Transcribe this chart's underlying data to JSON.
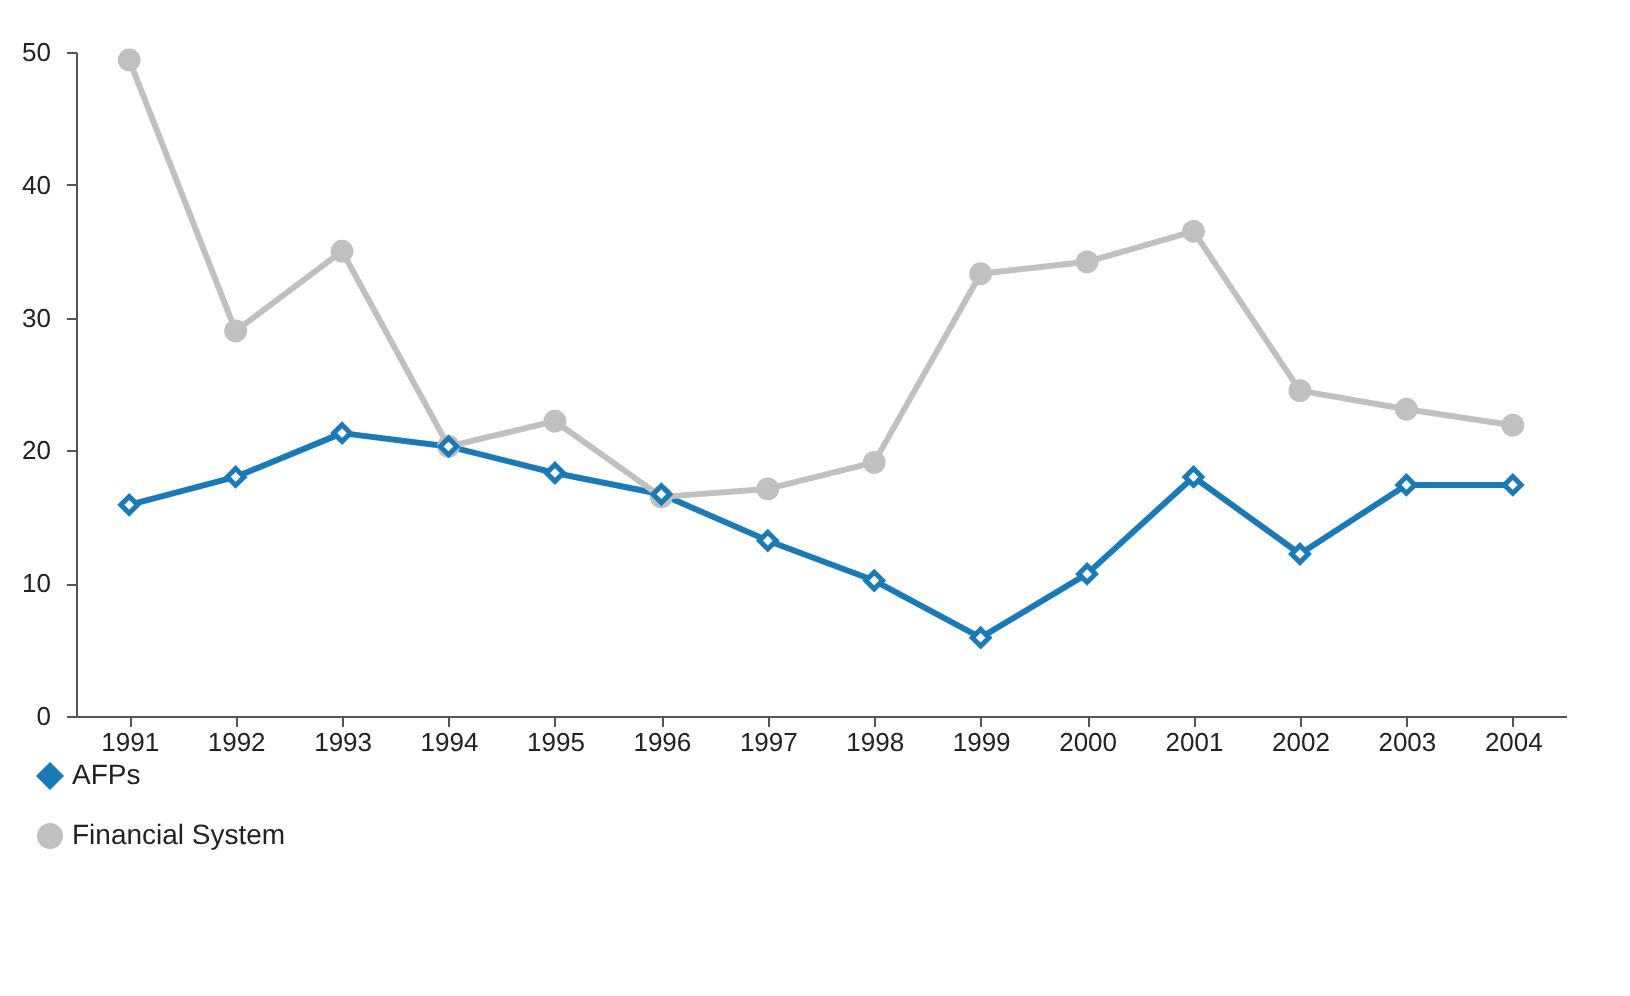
{
  "chart_data": {
    "type": "line",
    "categories": [
      "1991",
      "1992",
      "1993",
      "1994",
      "1995",
      "1996",
      "1997",
      "1998",
      "1999",
      "2000",
      "2001",
      "2002",
      "2003",
      "2004"
    ],
    "series": [
      {
        "name": "AFPs",
        "color": "#1a7ab8",
        "marker": "diamond",
        "values": [
          15.9,
          18.0,
          21.3,
          20.3,
          18.3,
          16.7,
          13.2,
          10.2,
          5.9,
          10.7,
          18.0,
          12.2,
          17.4,
          17.4
        ]
      },
      {
        "name": "Financial System",
        "color": "#c0c0c0",
        "marker": "circle",
        "values": [
          49.4,
          29.0,
          35.0,
          20.3,
          22.2,
          16.5,
          17.1,
          19.1,
          33.3,
          34.2,
          36.5,
          24.5,
          23.1,
          21.9
        ]
      }
    ],
    "ylim": [
      0,
      50
    ],
    "yticks": [
      0,
      10,
      20,
      30,
      40,
      50
    ],
    "grid": false,
    "legend": "bottom left",
    "line_style": "solid"
  }
}
